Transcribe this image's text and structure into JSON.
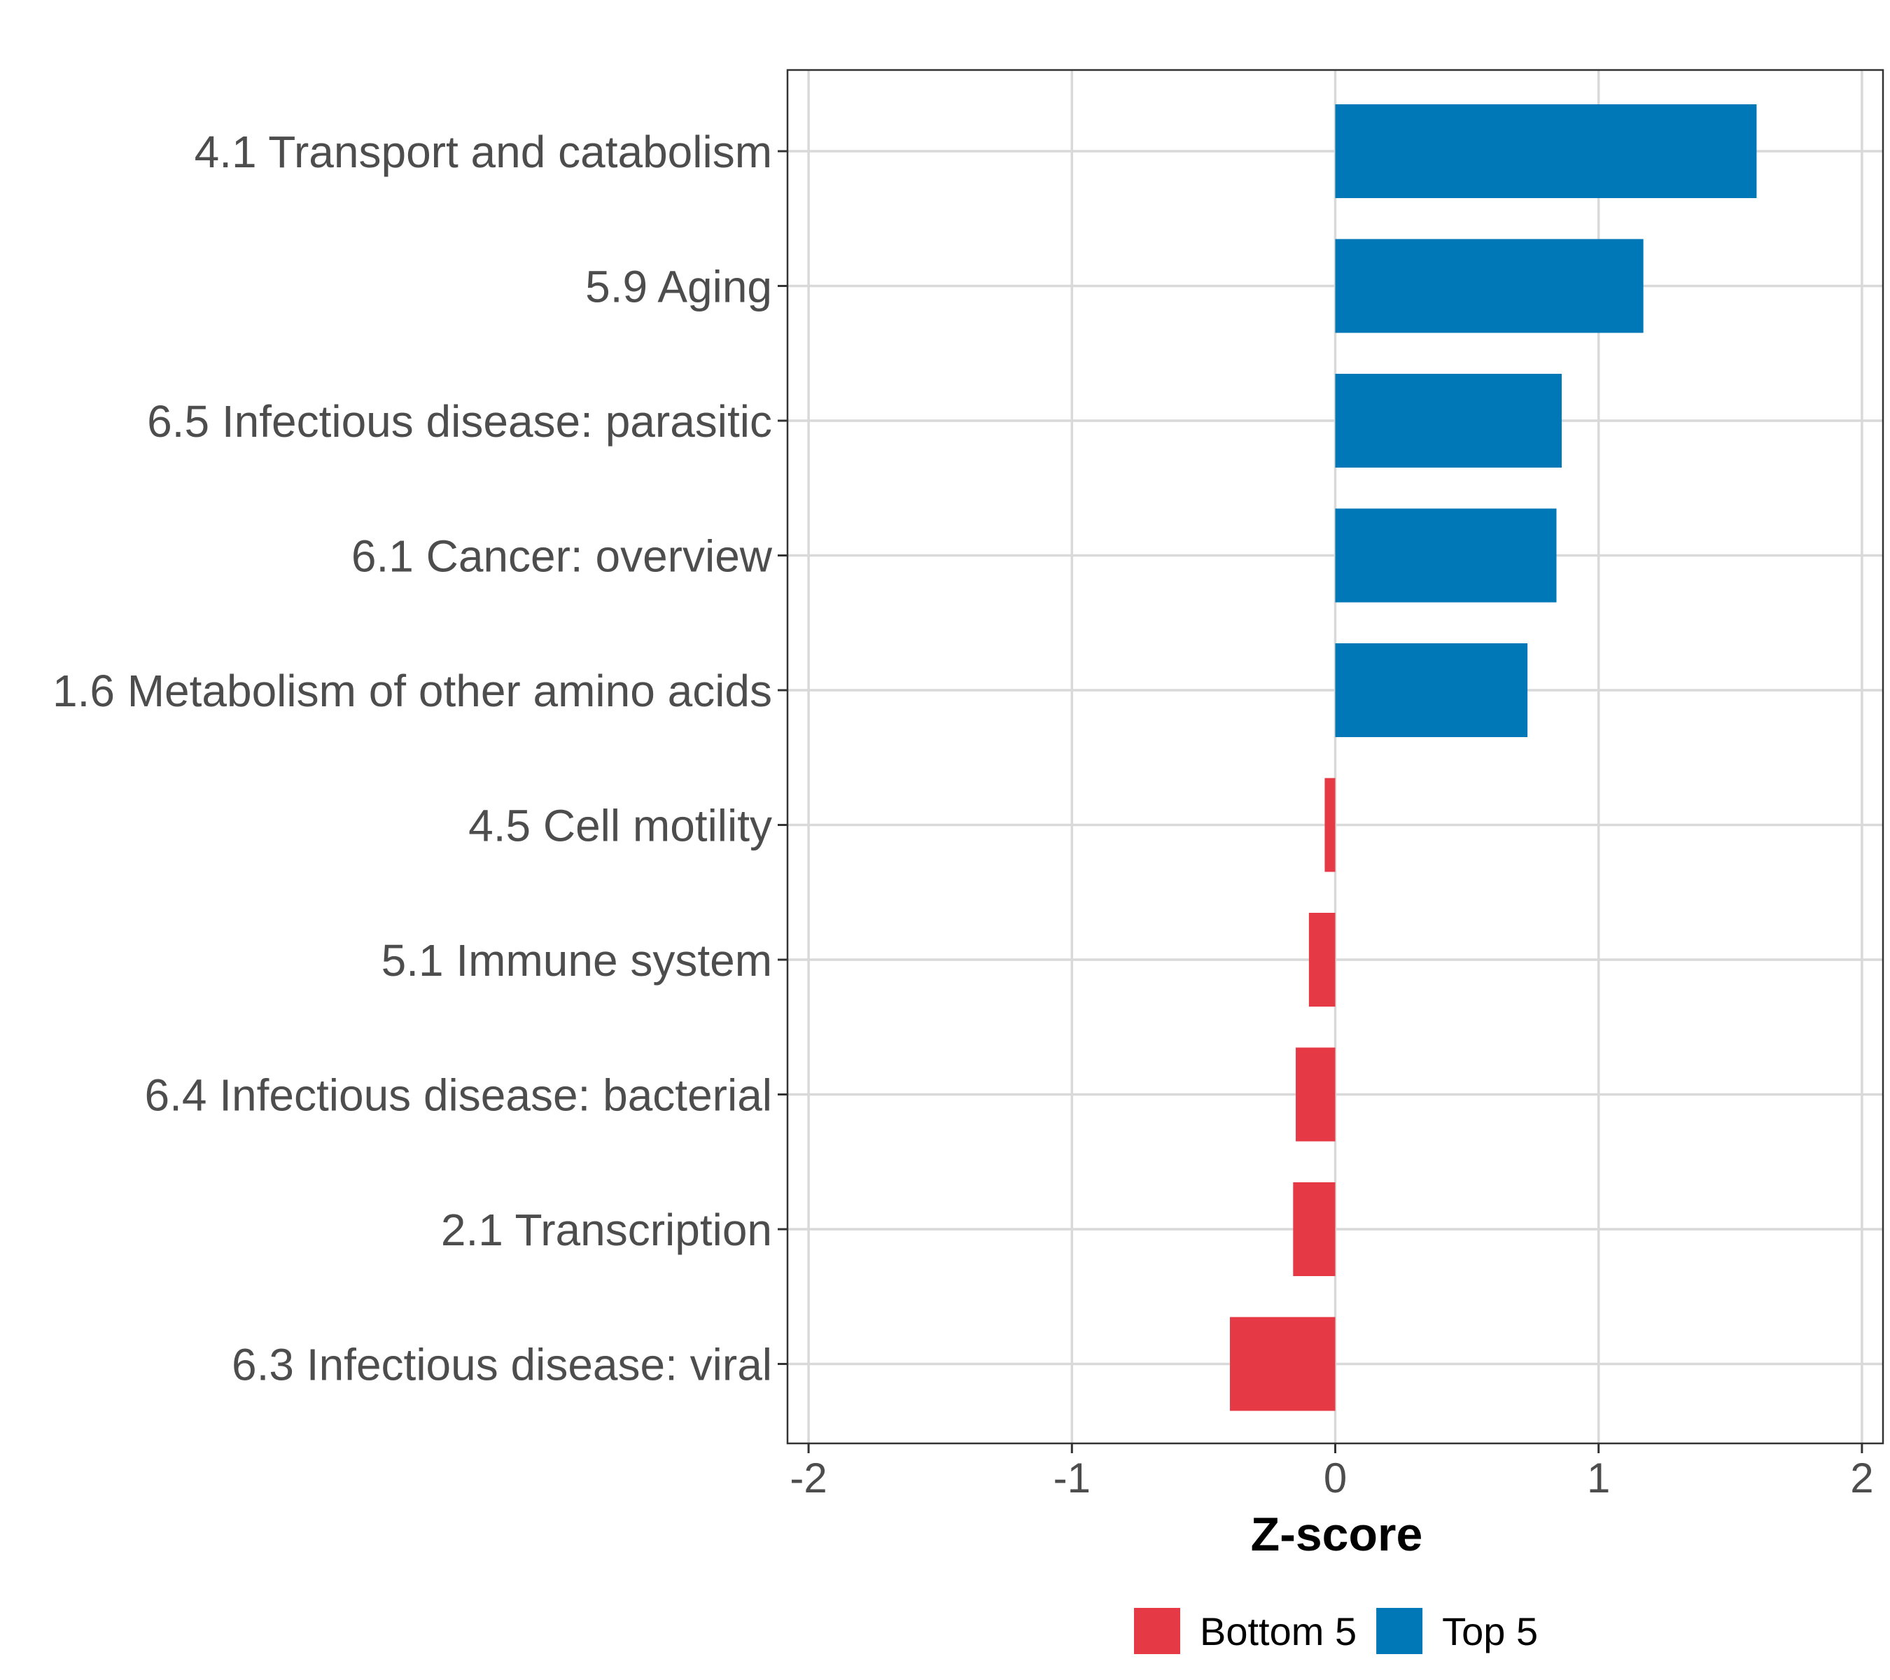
{
  "chart_data": {
    "type": "bar",
    "orientation": "horizontal",
    "title": "",
    "xlabel": "Z-score",
    "ylabel": "",
    "xlim": [
      -2.08,
      2.08
    ],
    "xticks": [
      -2,
      -1,
      0,
      1,
      2
    ],
    "xtick_labels": [
      "-2",
      "-1",
      "0",
      "1",
      "2"
    ],
    "grid": true,
    "legend_position": "bottom",
    "categories": [
      "4.1 Transport and catabolism",
      "5.9 Aging",
      "6.5 Infectious disease: parasitic",
      "6.1 Cancer: overview",
      "1.6 Metabolism of other amino acids",
      "4.5 Cell motility",
      "5.1 Immune system",
      "6.4 Infectious disease: bacterial",
      "2.1 Transcription",
      "6.3 Infectious disease: viral"
    ],
    "values": [
      1.6,
      1.17,
      0.86,
      0.84,
      0.73,
      -0.04,
      -0.1,
      -0.15,
      -0.16,
      -0.4
    ],
    "groups": [
      "Top 5",
      "Top 5",
      "Top 5",
      "Top 5",
      "Top 5",
      "Bottom 5",
      "Bottom 5",
      "Bottom 5",
      "Bottom 5",
      "Bottom 5"
    ],
    "legend": [
      {
        "label": "Bottom 5",
        "color": "#e63946"
      },
      {
        "label": "Top 5",
        "color": "#0077b6"
      }
    ]
  }
}
